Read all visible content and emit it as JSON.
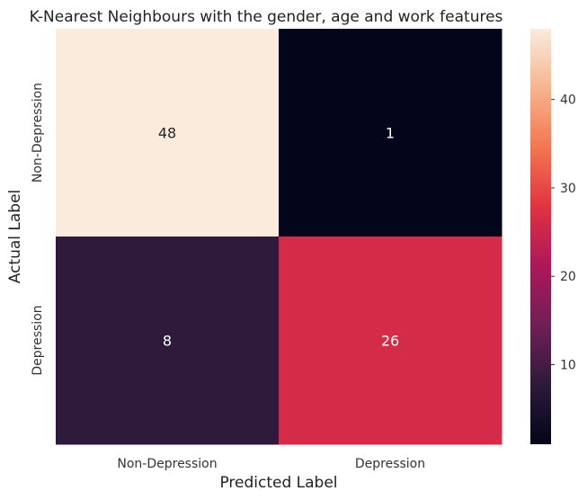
{
  "chart_data": {
    "type": "heatmap",
    "title": "K-Nearest Neighbours with the gender, age and work features",
    "xlabel": "Predicted Label",
    "ylabel": "Actual Label",
    "x_categories": [
      "Non-Depression",
      "Depression"
    ],
    "y_categories": [
      "Non-Depression",
      "Depression"
    ],
    "values": [
      [
        48,
        1
      ],
      [
        8,
        26
      ]
    ],
    "colorbar": {
      "range": [
        1,
        48
      ],
      "ticks": [
        10,
        20,
        30,
        40
      ],
      "tick_labels": [
        "10",
        "20",
        "30",
        "40"
      ],
      "colormap": "rocket",
      "colors": [
        "#03051a",
        "#2d1a3a",
        "#701f57",
        "#ad1759",
        "#e13342",
        "#f37651",
        "#f6b48f",
        "#faebdd"
      ]
    },
    "legend": "colorbar-right",
    "grid": false
  }
}
